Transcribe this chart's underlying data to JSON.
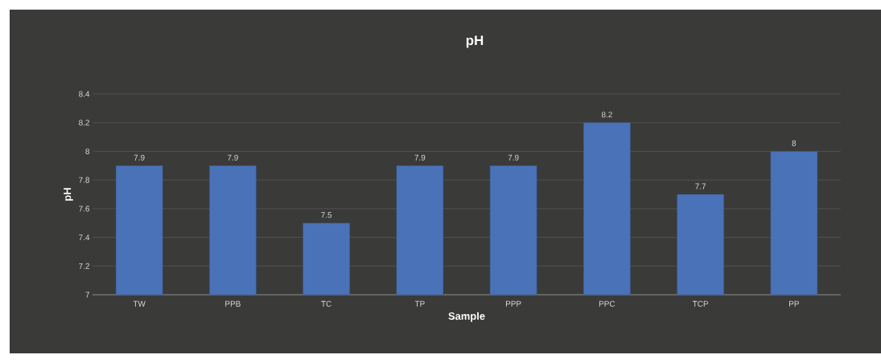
{
  "chart_data": {
    "type": "bar",
    "title": "pH",
    "xlabel": "Sample",
    "ylabel": "pH",
    "categories": [
      "TW",
      "PPB",
      "TC",
      "TP",
      "PPP",
      "PPC",
      "TCP",
      "PP"
    ],
    "values": [
      7.9,
      7.9,
      7.5,
      7.9,
      7.9,
      8.2,
      7.7,
      8
    ],
    "value_labels": [
      "7.9",
      "7.9",
      "7.5",
      "7.9",
      "7.9",
      "8.2",
      "7.7",
      "8"
    ],
    "color": "#4a72b8",
    "ylim": [
      7,
      8.4
    ],
    "yticks": [
      7,
      7.2,
      7.4,
      7.6,
      7.8,
      8,
      8.2,
      8.4
    ],
    "grid": "y"
  }
}
